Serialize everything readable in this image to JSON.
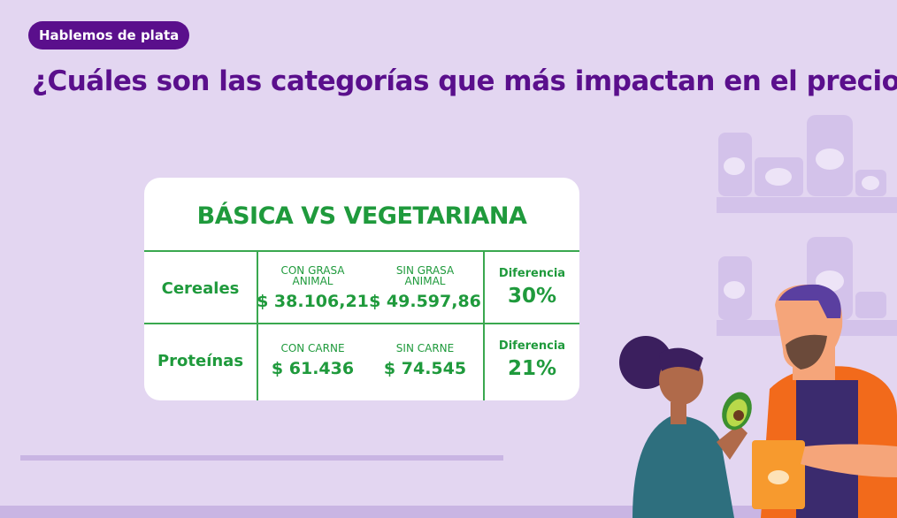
{
  "badge": "Hablemos de plata",
  "title": "¿Cuáles son las categorías que más impactan en el precio?",
  "table": {
    "title": "BÁSICA VS VEGETARIANA",
    "rows": [
      {
        "label": "Cereales",
        "option_a": {
          "header": "CON GRASA ANIMAL",
          "value": "$ 38.106,21"
        },
        "option_b": {
          "header": "SIN GRASA ANIMAL",
          "value": "$ 49.597,86"
        },
        "difference": {
          "header": "Diferencia",
          "value": "30%"
        }
      },
      {
        "label": "Proteínas",
        "option_a": {
          "header": "CON CARNE",
          "value": "$ 61.436"
        },
        "option_b": {
          "header": "SIN CARNE",
          "value": "$ 74.545"
        },
        "difference": {
          "header": "Diferencia",
          "value": "21%"
        }
      }
    ]
  }
}
